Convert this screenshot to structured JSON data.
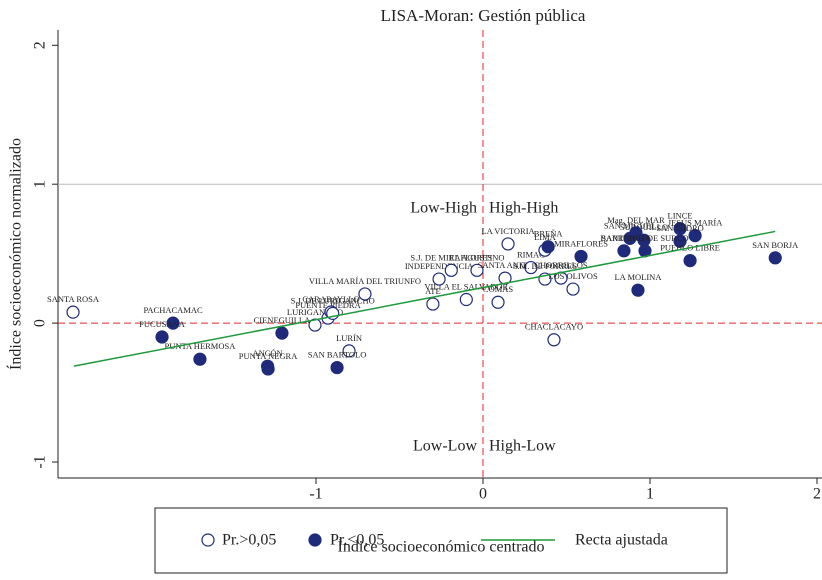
{
  "chart_data": {
    "type": "scatter",
    "title": "LISA-Moran: Gestión pública",
    "xlabel": "Índice socioeconómico centrado",
    "ylabel": "Índice socioeconómico normalizado",
    "xlim": [
      -2.545,
      2.03
    ],
    "ylim": [
      -1.115,
      2.11
    ],
    "xticks": [
      -1,
      0,
      1,
      2
    ],
    "yticks": [
      -1,
      0,
      1,
      2
    ],
    "hlines": [
      1
    ],
    "hline_color": "#bbbbbb",
    "reference_lines": {
      "x": 0,
      "y": 0,
      "color": "#e8262b"
    },
    "annotations": [
      "Low-High",
      "High-High",
      "Low-Low",
      "High-Low"
    ],
    "series": [
      {
        "name": "Pr.>0,05",
        "color": "#1f2a7a",
        "marker": "open",
        "labels": [
          "SANTA ROSA",
          "LURIGANCHO",
          "PUENTE PIEDRA",
          "CARABAYLLO",
          "S.J. DE LURIGANCHO",
          "VILLA MARÍA DEL TRIUNFO",
          "LURÍN",
          "ATE",
          "VILLA EL SALVADOR",
          "INDEPENDENCIA",
          "S.J. DE MIRAFLORES",
          "EL AGUSTINO",
          "SANTA ANITA",
          "COMAS",
          "LA VICTORIA",
          "RIMAC",
          "LIMA",
          "S.M. DE PORRES",
          "CHORRILLOS",
          "LOS OLIVOS",
          "CHACLACAYO"
        ],
        "x": [
          -2.455,
          -1.006,
          -0.928,
          -0.91,
          -0.9,
          -0.707,
          -0.802,
          -0.3,
          -0.1,
          -0.263,
          -0.19,
          -0.036,
          0.132,
          0.09,
          0.15,
          0.287,
          0.371,
          0.371,
          0.467,
          0.539,
          0.425
        ],
        "y": [
          0.079,
          -0.014,
          0.036,
          0.08,
          0.07,
          0.21,
          -0.2,
          0.137,
          0.17,
          0.317,
          0.38,
          0.38,
          0.324,
          0.15,
          0.57,
          0.4,
          0.525,
          0.317,
          0.324,
          0.245,
          -0.12
        ]
      },
      {
        "name": "Pr.<0,05",
        "color": "#1f2a7a",
        "marker": "filled",
        "labels": [
          "PACHACAMAC",
          "PUCUSANA",
          "PUNTA HERMOSA",
          "PUNTA NEGRA",
          "ANCÓN",
          "CIENEGUILLA",
          "SAN BARTOLO",
          "BREÑA",
          "SAN MIGUEL",
          "MIRAFLORES",
          "SURQUILLO",
          "Mag. DEL MAR",
          "LINCE",
          "JESÚS MARÍA",
          "SAN ISIDRO",
          "PUEBLO LIBRE",
          "BARRANCO",
          "SAN BORJA",
          "SANTIAGO DE SURCO",
          "LA MOLINA"
        ],
        "x": [
          -1.856,
          -1.922,
          -1.695,
          -1.287,
          -1.29,
          -1.204,
          -0.874,
          0.39,
          0.88,
          0.587,
          0.964,
          0.916,
          1.18,
          1.27,
          1.18,
          1.24,
          0.844,
          1.75,
          0.97,
          0.928
        ],
        "y": [
          0,
          -0.1,
          -0.26,
          -0.33,
          -0.31,
          -0.072,
          -0.32,
          0.55,
          0.61,
          0.48,
          0.597,
          0.65,
          0.68,
          0.63,
          0.59,
          0.45,
          0.52,
          0.47,
          0.52,
          0.237
        ]
      },
      {
        "name": "Recta ajustada",
        "color": "#1e9a3c",
        "marker": "line",
        "x": [
          -2.45,
          1.75
        ],
        "y": [
          -0.31,
          0.66
        ]
      }
    ]
  }
}
